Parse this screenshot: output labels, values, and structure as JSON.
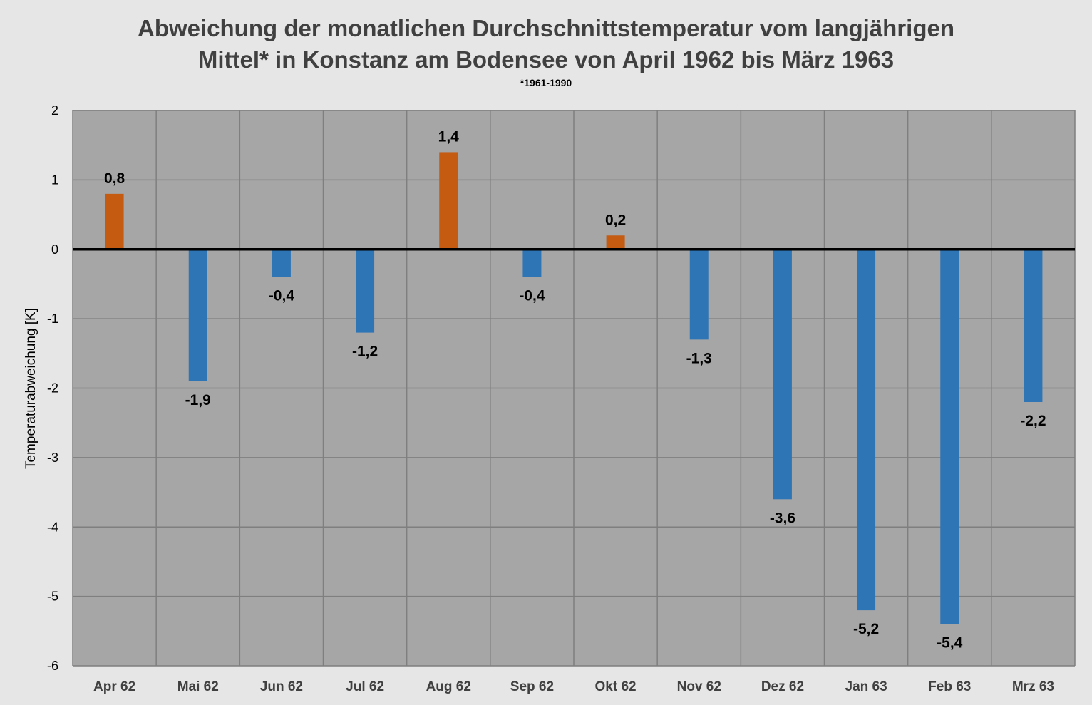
{
  "chart_data": {
    "type": "bar",
    "title_line1": "Abweichung der monatlichen Durchschnittstemperatur vom langjährigen",
    "title_line2": "Mittel* in Konstanz am Bodensee von April 1962 bis März 1963",
    "subtitle": "*1961-1990",
    "xlabel": "",
    "ylabel": "Temperaturabweichung [K]",
    "ylim": [
      -6,
      2
    ],
    "yticks": [
      2,
      1,
      0,
      -1,
      -2,
      -3,
      -4,
      -5,
      -6
    ],
    "grid": true,
    "categories": [
      "Apr 62",
      "Mai 62",
      "Jun 62",
      "Jul 62",
      "Aug 62",
      "Sep 62",
      "Okt 62",
      "Nov 62",
      "Dez 62",
      "Jan 63",
      "Feb 63",
      "Mrz 63"
    ],
    "values": [
      0.8,
      -1.9,
      -0.4,
      -1.2,
      1.4,
      -0.4,
      0.2,
      -1.3,
      -3.6,
      -5.2,
      -5.4,
      -2.2
    ],
    "data_labels": [
      "0,8",
      "-1,9",
      "-0,4",
      "-1,2",
      "1,4",
      "-0,4",
      "0,2",
      "-1,3",
      "-3,6",
      "-5,2",
      "-5,4",
      "-2,2"
    ],
    "colors": {
      "positive": "#c55a11",
      "negative": "#2e75b6",
      "plot_background": "#a6a6a6",
      "page_background": "#e6e6e6",
      "gridline": "#7f7f7f",
      "zero_line": "#000000"
    }
  }
}
